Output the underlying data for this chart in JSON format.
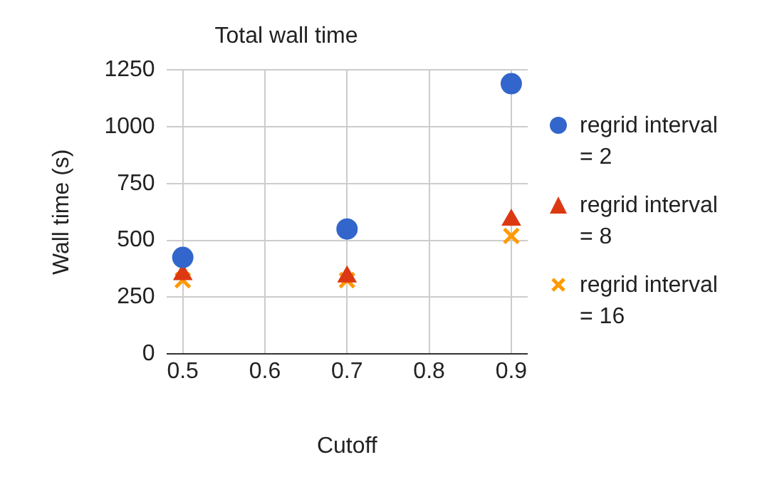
{
  "chart_data": {
    "type": "scatter",
    "title": "Total wall time",
    "xlabel": "Cutoff",
    "ylabel": "Wall time (s)",
    "x": [
      0.5,
      0.7,
      0.9
    ],
    "series": [
      {
        "name": "regrid interval = 2",
        "color": "#3366cc",
        "marker": "circle",
        "values": [
          425,
          550,
          1190
        ]
      },
      {
        "name": "regrid interval = 8",
        "color": "#dc3912",
        "marker": "triangle",
        "values": [
          350,
          340,
          590
        ]
      },
      {
        "name": "regrid interval = 16",
        "color": "#ff9900",
        "marker": "cross",
        "values": [
          325,
          325,
          520
        ]
      }
    ],
    "xlim": [
      0.48,
      0.92
    ],
    "xticks": [
      0.5,
      0.6,
      0.7,
      0.8,
      0.9
    ],
    "ylim": [
      0,
      1250
    ],
    "yticks": [
      0,
      250,
      500,
      750,
      1000,
      1250
    ],
    "grid": true,
    "legend": "right"
  }
}
